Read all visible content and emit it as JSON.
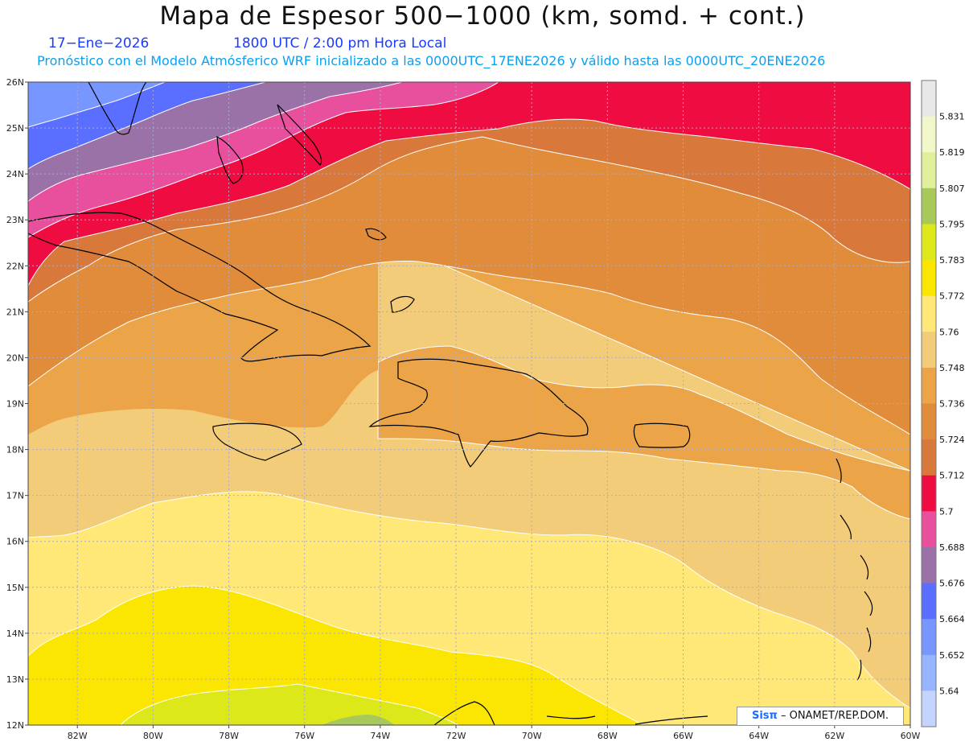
{
  "header": {
    "title": "Mapa de Espesor 500−1000 (km, somd. + cont.)",
    "date": "17−Ene−2026",
    "time": "1800 UTC / 2:00 pm Hora Local",
    "forecast": "Pronóstico con el Modelo Atmósferico WRF inicializado a las 0000UTC_17ENE2026 y válido hasta las  0000UTC_20ENE2026"
  },
  "map": {
    "lat_labels": [
      "26N",
      "25N",
      "24N",
      "23N",
      "22N",
      "21N",
      "20N",
      "19N",
      "18N",
      "17N",
      "16N",
      "15N",
      "14N",
      "13N",
      "12N"
    ],
    "lon_labels": [
      "82W",
      "80W",
      "78W",
      "76W",
      "74W",
      "72W",
      "70W",
      "68W",
      "66W",
      "64W",
      "62W",
      "60W"
    ],
    "lat_range": [
      12,
      26
    ],
    "lon_range": [
      -83.3,
      -60
    ],
    "grid": true
  },
  "colorbar": {
    "labels": [
      "5.831",
      "5.819",
      "5.807",
      "5.795",
      "5.783",
      "5.772",
      "5.76",
      "5.748",
      "5.736",
      "5.724",
      "5.712",
      "5.7",
      "5.688",
      "5.676",
      "5.664",
      "5.652",
      "5.64"
    ],
    "colors": [
      "#e8e8e8",
      "#f2f6c8",
      "#e0f09a",
      "#a8c85a",
      "#dde81a",
      "#fae600",
      "#ffe878",
      "#f2cc78",
      "#eca448",
      "#e08c3a",
      "#d8783a",
      "#ee0c40",
      "#e8509e",
      "#9a72a8",
      "#5a6eff",
      "#7896ff",
      "#96b4ff",
      "#c4d4ff"
    ]
  },
  "credit": {
    "brand": "Sisπ",
    "text": "– ONAMET/REP.DOM."
  }
}
